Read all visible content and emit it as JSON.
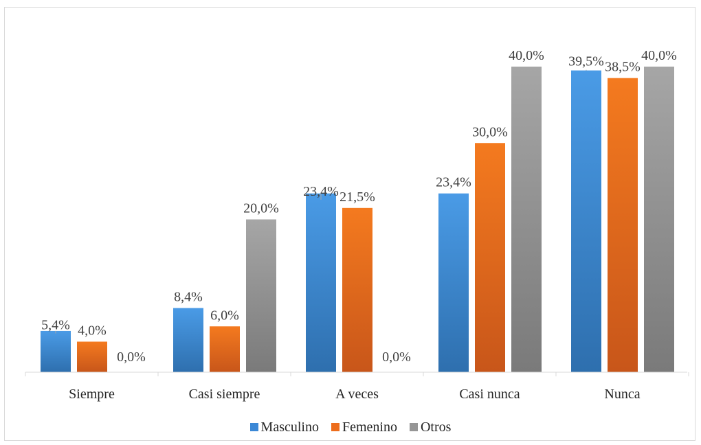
{
  "chart_data": {
    "type": "bar",
    "categories": [
      "Siempre",
      "Casi siempre",
      "A veces",
      "Casi nunca",
      "Nunca"
    ],
    "series": [
      {
        "name": "Masculino",
        "values": [
          5.4,
          8.4,
          23.4,
          23.4,
          39.5
        ],
        "labels": [
          "5,4%",
          "8,4%",
          "23,4%",
          "23,4%",
          "39,5%"
        ],
        "color_top": "#4a9be6",
        "color_bottom": "#2e6fae"
      },
      {
        "name": "Femenino",
        "values": [
          4.0,
          6.0,
          21.5,
          30.0,
          38.5
        ],
        "labels": [
          "4,0%",
          "6,0%",
          "21,5%",
          "30,0%",
          "38,5%"
        ],
        "color_top": "#f47a1f",
        "color_bottom": "#c8561a"
      },
      {
        "name": "Otros",
        "values": [
          0.0,
          20.0,
          0.0,
          40.0,
          40.0
        ],
        "labels": [
          "0,0%",
          "20,0%",
          "0,0%",
          "40,0%",
          "40,0%"
        ],
        "color_top": "#a6a6a6",
        "color_bottom": "#7a7a7a"
      }
    ],
    "ylim": [
      0,
      40
    ],
    "grid": false,
    "legend": "bottom"
  },
  "legend": {
    "items": [
      {
        "label": "Masculino",
        "color": "#3b88d6"
      },
      {
        "label": "Femenino",
        "color": "#ed6d1c"
      },
      {
        "label": "Otros",
        "color": "#969696"
      }
    ]
  }
}
